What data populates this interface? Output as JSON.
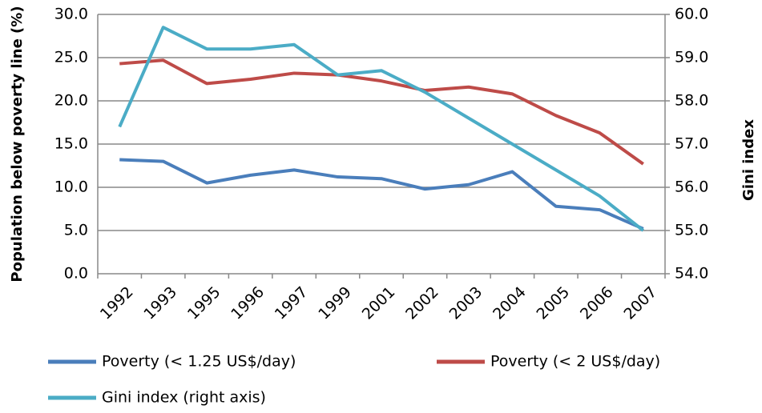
{
  "chart_data": {
    "type": "line",
    "y_label": "Population  below poverty line (%)",
    "y2_label": "Gini index",
    "categories": [
      "1992",
      "1993",
      "1995",
      "1996",
      "1997",
      "1999",
      "2001",
      "2002",
      "2003",
      "2004",
      "2005",
      "2006",
      "2007"
    ],
    "series": [
      {
        "name": "Poverty (< 1.25 US$/day)",
        "color": "#4a7ebb",
        "values": [
          13.2,
          13.0,
          10.5,
          11.4,
          12.0,
          11.2,
          11.0,
          9.8,
          10.3,
          11.8,
          7.8,
          7.4,
          5.2
        ]
      },
      {
        "name": "Poverty (< 2 US$/day)",
        "color": "#be4b48",
        "values": [
          24.3,
          24.7,
          22.0,
          22.5,
          23.2,
          23.0,
          22.3,
          21.2,
          21.6,
          20.8,
          18.3,
          16.3,
          12.7
        ]
      },
      {
        "name": "Gini index (right axis)",
        "color": "#4bacc6",
        "axis": "y2",
        "values": [
          57.4,
          59.7,
          59.2,
          59.2,
          59.3,
          58.6,
          58.7,
          58.2,
          57.6,
          57.0,
          56.4,
          55.8,
          55.0
        ]
      }
    ],
    "ylim": [
      0,
      30
    ],
    "yticks": [
      {
        "value": 0,
        "label": "0.0"
      },
      {
        "value": 5,
        "label": "5.0"
      },
      {
        "value": 10,
        "label": "10.0"
      },
      {
        "value": 15,
        "label": "15.0"
      },
      {
        "value": 20,
        "label": "20.0"
      },
      {
        "value": 25,
        "label": "25.0"
      },
      {
        "value": 30,
        "label": "30.0"
      }
    ],
    "y2lim": [
      54,
      60
    ],
    "y2ticks": [
      {
        "value": 54,
        "label": "54.0"
      },
      {
        "value": 55,
        "label": "55.0"
      },
      {
        "value": 56,
        "label": "56.0"
      },
      {
        "value": 57,
        "label": "57.0"
      },
      {
        "value": 58,
        "label": "58.0"
      },
      {
        "value": 59,
        "label": "59.0"
      },
      {
        "value": 60,
        "label": "60.0"
      }
    ],
    "grid": true,
    "legend": "bottom"
  }
}
